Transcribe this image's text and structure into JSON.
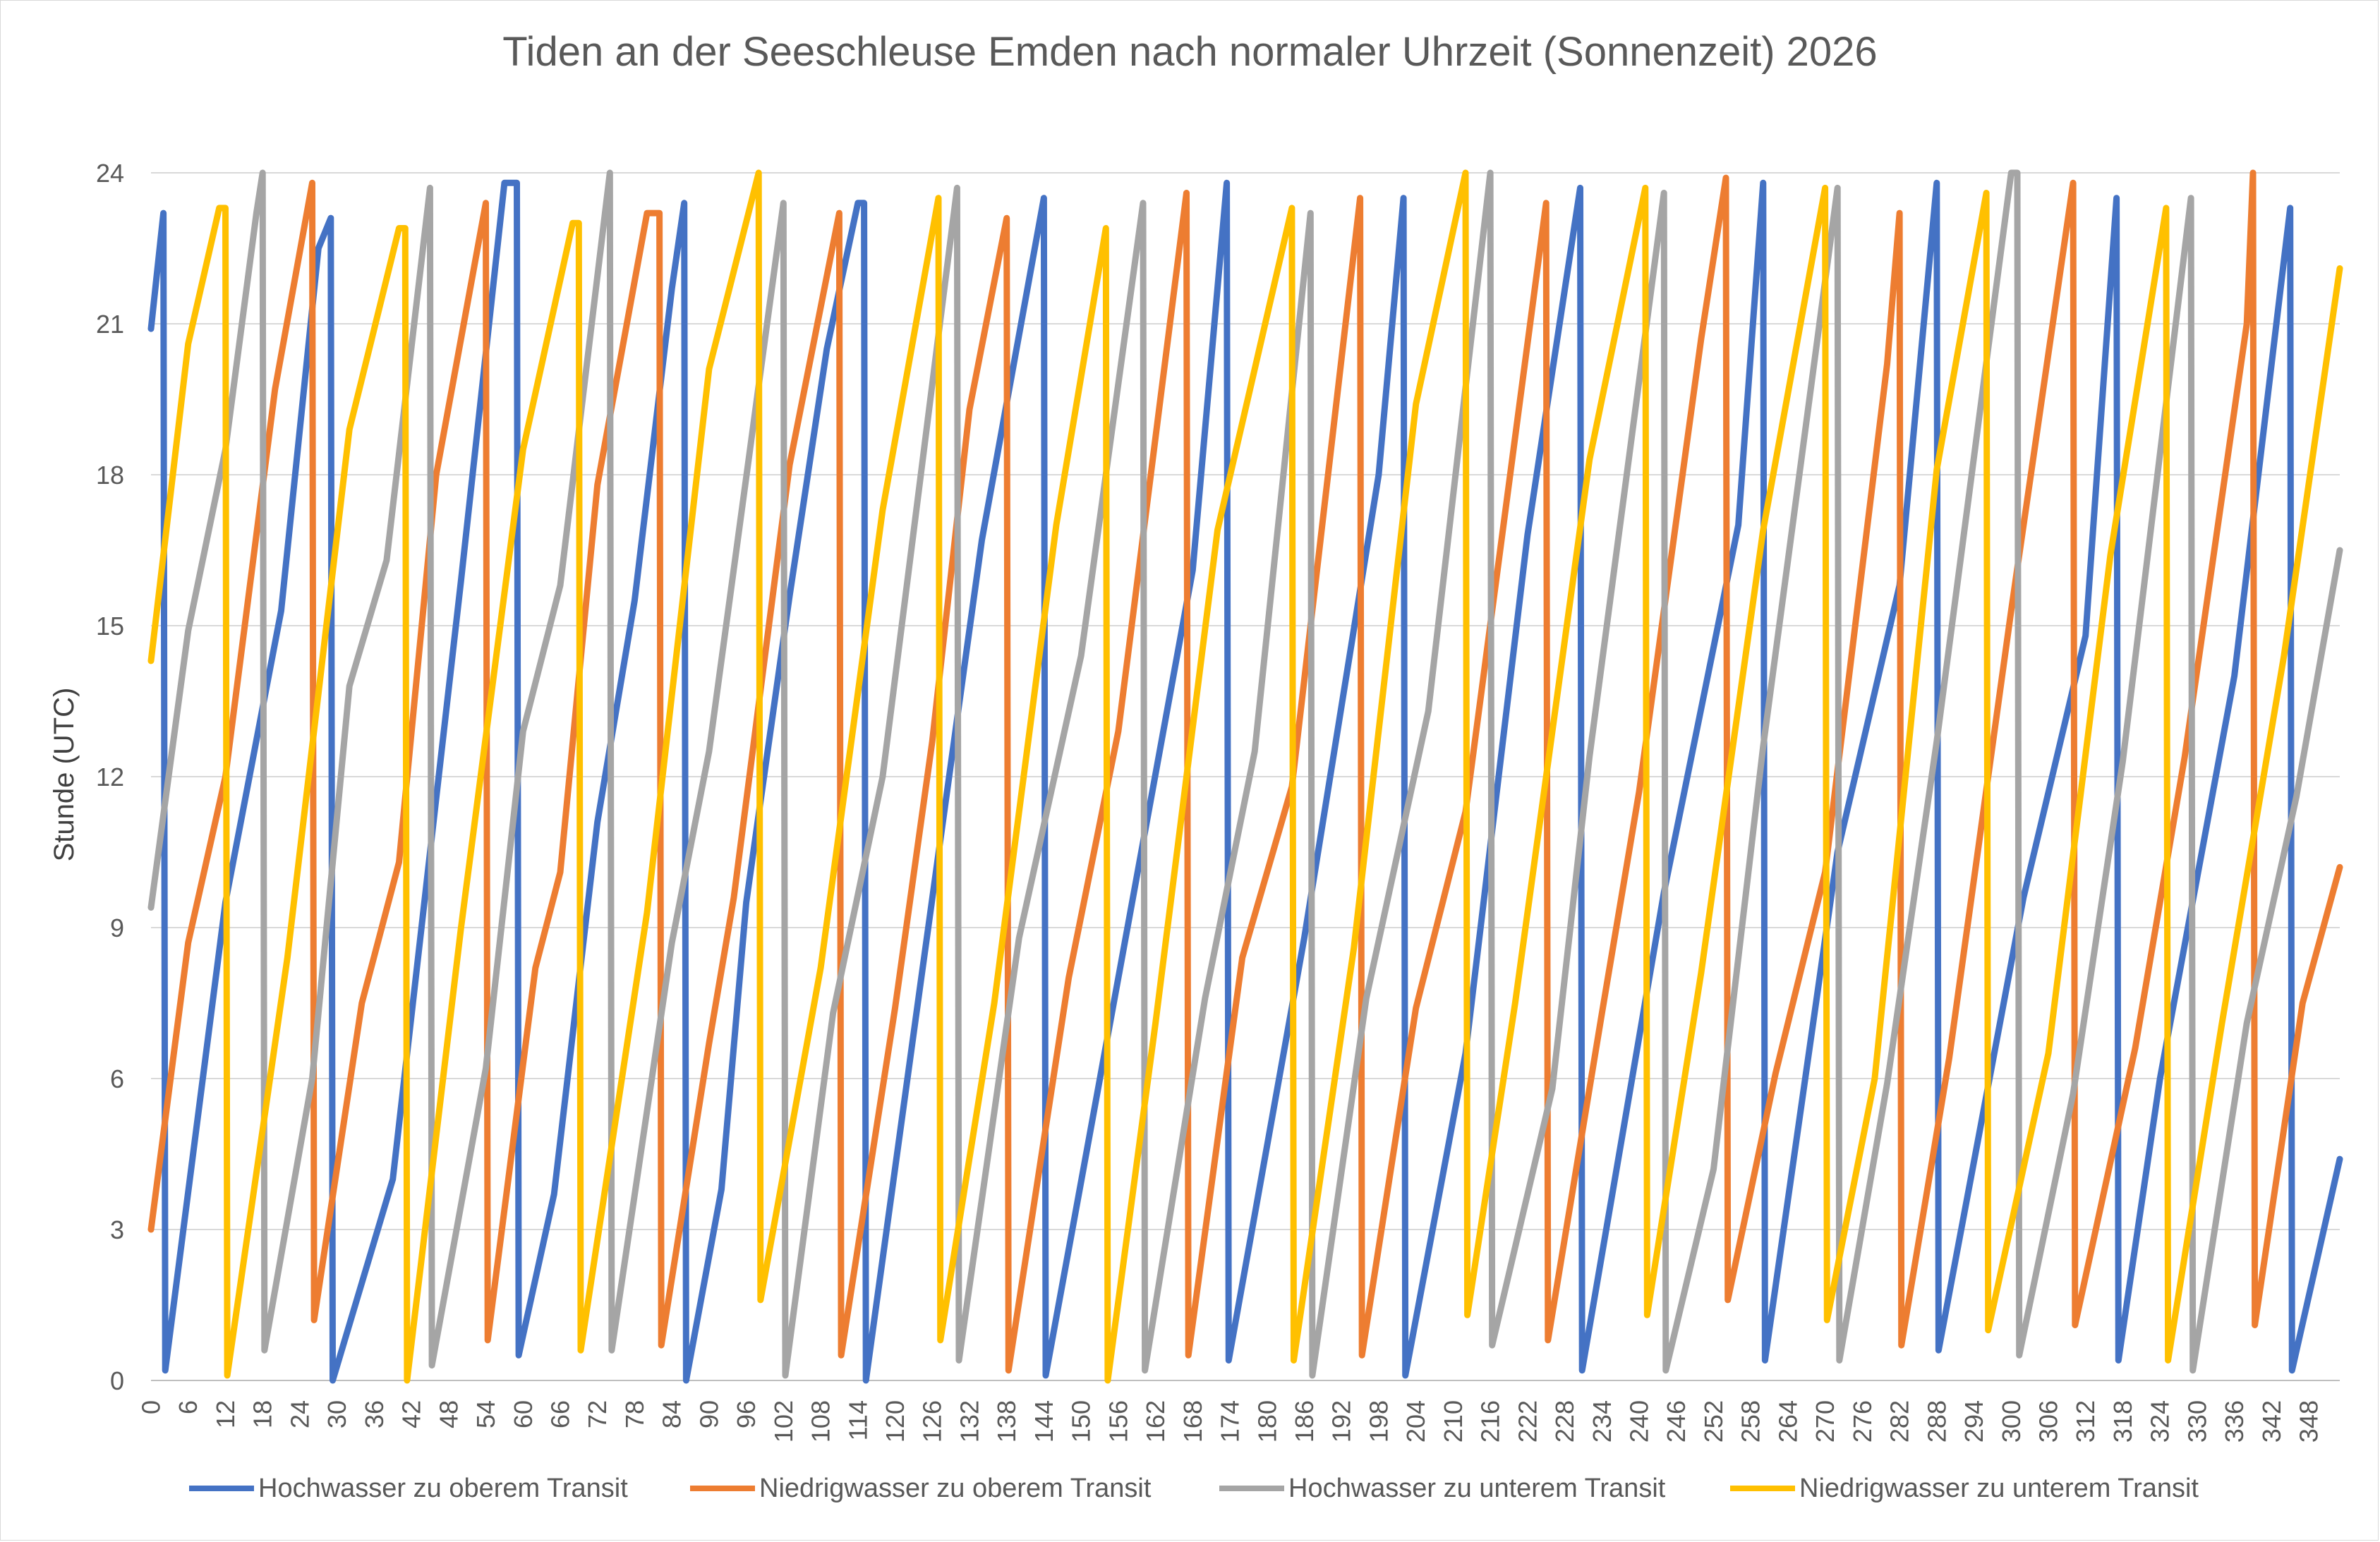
{
  "chart_data": {
    "type": "line",
    "title": "Tiden an der Seeschleuse Emden nach normaler Uhrzeit (Sonnenzeit) 2026",
    "xlabel": "",
    "ylabel": "Stunde (UTC)",
    "xlim": [
      0,
      353
    ],
    "ylim": [
      0,
      24
    ],
    "y_ticks": [
      0,
      3,
      6,
      9,
      12,
      15,
      18,
      21,
      24
    ],
    "x_ticks": [
      0,
      6,
      12,
      18,
      24,
      30,
      36,
      42,
      48,
      54,
      60,
      66,
      72,
      78,
      84,
      90,
      96,
      102,
      108,
      114,
      120,
      126,
      132,
      138,
      144,
      150,
      156,
      162,
      168,
      174,
      180,
      186,
      192,
      198,
      204,
      210,
      216,
      222,
      228,
      234,
      240,
      246,
      252,
      258,
      264,
      270,
      276,
      282,
      288,
      294,
      300,
      306,
      312,
      318,
      324,
      330,
      336,
      342,
      348
    ],
    "grid": {
      "horizontal": true,
      "vertical": false
    },
    "legend_position": "bottom",
    "series": [
      {
        "name": "Hochwasser zu oberem Transit",
        "color": "#4472C4",
        "x": [
          0,
          2,
          2.3,
          12,
          21,
          27,
          29,
          29.3,
          39,
          50,
          57,
          59,
          59.3,
          65,
          72,
          78,
          84,
          86,
          86.3,
          92,
          96,
          103,
          109,
          114,
          115,
          115.3,
          124,
          134,
          144,
          144.3,
          156,
          168,
          173.5,
          173.8,
          186,
          198,
          202,
          202.3,
          212,
          222,
          230.5,
          230.8,
          244,
          256,
          260,
          260.3,
          272,
          282,
          288,
          288.3,
          302,
          312,
          317,
          317.3,
          324,
          330,
          336,
          345,
          345.3,
          353
        ],
        "y": [
          20.9,
          23.2,
          0.2,
          9.5,
          15.3,
          22.5,
          23.1,
          0,
          4,
          15.9,
          23.8,
          23.8,
          0.5,
          3.7,
          11.1,
          15.5,
          21.7,
          23.4,
          0,
          3.8,
          9.5,
          15.6,
          20.5,
          23.4,
          23.4,
          0,
          7.8,
          16.7,
          23.5,
          0.1,
          8,
          16.1,
          23.8,
          0.4,
          8.8,
          18,
          23.5,
          0.1,
          6.5,
          16.8,
          23.7,
          0.2,
          9.7,
          17,
          23.8,
          0.4,
          10.5,
          15.8,
          23.8,
          0.6,
          9.6,
          14.8,
          23.5,
          0.4,
          6,
          10,
          14,
          23.3,
          0.2,
          4.4
        ]
      },
      {
        "name": "Niedrigwasser zu oberem Transit",
        "color": "#ED7D31",
        "x": [
          0,
          6,
          12,
          20,
          26,
          26.3,
          34,
          40,
          46,
          54,
          54.3,
          62,
          66,
          72,
          80,
          82,
          82.3,
          90,
          94,
          103,
          111,
          111.3,
          120,
          126,
          132,
          138,
          138.3,
          148,
          156,
          167,
          167.3,
          176,
          184,
          195,
          195.3,
          204,
          212,
          225,
          225.3,
          234,
          240,
          250,
          254,
          254.3,
          262,
          270,
          280,
          282,
          282.3,
          290,
          300,
          310,
          310.3,
          320,
          328,
          338,
          339,
          339.3,
          347,
          353
        ],
        "y": [
          3,
          8.7,
          12,
          19.7,
          23.8,
          1.2,
          7.5,
          10.3,
          18,
          23.4,
          0.8,
          8.2,
          10.1,
          17.8,
          23.2,
          23.2,
          0.7,
          6.7,
          9.6,
          18.2,
          23.2,
          0.5,
          7.4,
          12.7,
          19.3,
          23.1,
          0.2,
          8,
          12.9,
          23.6,
          0.5,
          8.4,
          11.8,
          23.5,
          0.5,
          7.4,
          11.3,
          23.4,
          0.8,
          7.3,
          11.7,
          20.7,
          23.9,
          1.6,
          6.1,
          10.1,
          20.2,
          23.2,
          0.7,
          6.4,
          15.3,
          23.8,
          1.1,
          6.6,
          12.4,
          21,
          24,
          1.1,
          7.5,
          10.2
        ]
      },
      {
        "name": "Hochwasser zu unterem Transit",
        "color": "#A5A5A5",
        "x": [
          0,
          6,
          12,
          17,
          18,
          18.3,
          26,
          32,
          38,
          45,
          45.3,
          54,
          60,
          66,
          74,
          74.3,
          84,
          90,
          102,
          102.3,
          110,
          118,
          130,
          130.3,
          140,
          150,
          160,
          160.3,
          170,
          178,
          187,
          187.3,
          196,
          206,
          216,
          216.3,
          226,
          232,
          244,
          244.3,
          252,
          260,
          272,
          272.3,
          280,
          288,
          300,
          301,
          301.3,
          310,
          318,
          329,
          329.3,
          338,
          346,
          353
        ],
        "y": [
          9.4,
          14.9,
          18.5,
          23.2,
          24,
          0.6,
          6,
          13.8,
          16.3,
          23.7,
          0.3,
          6.2,
          12.9,
          15.8,
          24,
          0.6,
          8.7,
          12.5,
          23.4,
          0.1,
          7.3,
          12,
          23.7,
          0.4,
          8.8,
          14.4,
          23.4,
          0.2,
          7.6,
          12.5,
          23.2,
          0.1,
          7.6,
          13.3,
          24,
          0.7,
          5.8,
          12.4,
          23.6,
          0.2,
          4.2,
          12.6,
          23.7,
          0.4,
          5.9,
          12.7,
          24,
          24,
          0.5,
          5.7,
          12.3,
          23.5,
          0.2,
          7.1,
          11.6,
          16.5
        ]
      },
      {
        "name": "Niedrigwasser zu unterem Transit",
        "color": "#FFC000",
        "x": [
          0,
          6,
          11,
          12,
          12.3,
          22,
          32,
          40,
          41,
          41.3,
          50,
          60,
          68,
          69,
          69.3,
          80,
          90,
          98,
          98.3,
          108,
          118,
          127,
          127.3,
          136,
          146,
          154,
          154.3,
          162,
          172,
          184,
          184.3,
          194,
          204,
          212,
          212.3,
          220,
          232,
          241,
          241.3,
          250,
          260,
          270,
          270.3,
          278,
          288,
          296,
          296.3,
          306,
          316,
          325,
          325.3,
          334,
          344,
          353
        ],
        "y": [
          14.3,
          20.6,
          23.3,
          23.3,
          0.1,
          8.4,
          18.9,
          22.9,
          22.9,
          0,
          9,
          18.5,
          23,
          23,
          0.6,
          9.3,
          20.1,
          24,
          1.6,
          8.2,
          17.3,
          23.5,
          0.8,
          7.5,
          17,
          22.9,
          0,
          7.1,
          16.9,
          23.3,
          0.4,
          8.6,
          19.4,
          24,
          1.3,
          7.5,
          18.3,
          23.7,
          1.3,
          8.1,
          16.9,
          23.7,
          1.2,
          6,
          18.1,
          23.6,
          1,
          6.5,
          16.4,
          23.3,
          0.4,
          7.1,
          14.4,
          22.1
        ]
      }
    ]
  }
}
